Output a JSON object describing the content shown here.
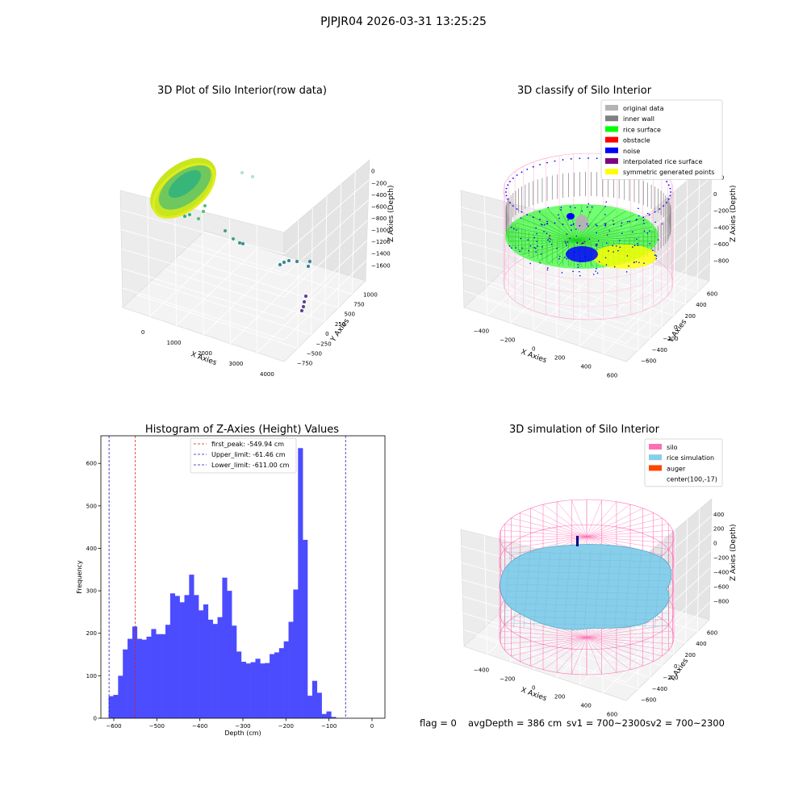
{
  "figure_title": "PJPJR04 2026-03-31 13:25:25",
  "status": {
    "flag": "flag = 0",
    "avg_depth": "avgDepth = 386 cm",
    "sv1": "sv1 = 700~2300",
    "sv2": "sv2 = 700~2300"
  },
  "colors": {
    "histogram": "#4c4cff",
    "first_peak_line": "#e31a1c",
    "limit_lines": "#1f1fb4",
    "silo": "#ff6eb4",
    "rice": "#87ceeb",
    "auger": "#ff4500",
    "original": "#b4b4b4",
    "inner_wall": "#808080",
    "rice_surface": "#00ff00",
    "obstacle": "#ff0000",
    "noise": "#0000ff",
    "interp": "#800080",
    "symmetric": "#ffff00"
  },
  "plot1": {
    "title": "3D Plot of Silo Interior(row data)",
    "xlabel": "X Axies",
    "ylabel": "Y Axies",
    "zlabel": "Z Axies (Depth)",
    "x_ticks": [
      "0",
      "1000",
      "2000",
      "3000",
      "4000"
    ],
    "y_ticks": [
      "1000",
      "750",
      "500",
      "250",
      "0",
      "−250",
      "−500",
      "−750"
    ],
    "z_ticks": [
      "0",
      "−200",
      "−400",
      "−600",
      "−800",
      "−1000",
      "−1200",
      "−1400",
      "−1600"
    ]
  },
  "plot2": {
    "title": "3D classify of Silo Interior",
    "xlabel": "X Axies",
    "ylabel": "Y Axies",
    "zlabel": "Z Axies (Depth)",
    "x_ticks": [
      "−400",
      "−200",
      "0",
      "200",
      "400",
      "600"
    ],
    "y_ticks": [
      "600",
      "400",
      "200",
      "0",
      "−200",
      "−400",
      "−600"
    ],
    "z_ticks": [
      "200",
      "0",
      "−200",
      "−400",
      "−600",
      "−800"
    ],
    "legend": [
      {
        "label": "original data",
        "color": "#b4b4b4"
      },
      {
        "label": "inner wall",
        "color": "#808080"
      },
      {
        "label": "rice surface",
        "color": "#00ff00"
      },
      {
        "label": "obstacle",
        "color": "#ff0000"
      },
      {
        "label": "noise",
        "color": "#0000ff"
      },
      {
        "label": "interpolated rice surface",
        "color": "#800080"
      },
      {
        "label": "symmetric generated points",
        "color": "#ffff00"
      }
    ]
  },
  "plot4": {
    "title": "3D simulation of Silo Interior",
    "xlabel": "X Axies",
    "ylabel": "Y Axies",
    "zlabel": "Z Axies (Depth)",
    "x_ticks": [
      "−400",
      "−200",
      "0",
      "200",
      "400",
      "600"
    ],
    "y_ticks": [
      "600",
      "400",
      "200",
      "0",
      "−200",
      "−400",
      "−600"
    ],
    "z_ticks": [
      "400",
      "200",
      "0",
      "−200",
      "−400",
      "−600",
      "−800"
    ],
    "legend": [
      {
        "label": "silo",
        "color": "#ff6eb4"
      },
      {
        "label": "rice simulation",
        "color": "#87ceeb"
      },
      {
        "label": "auger",
        "color": "#ff4500"
      },
      {
        "label": "center(100,-17)",
        "color": ""
      }
    ]
  },
  "chart_data": {
    "type": "bar",
    "title": "Histogram of Z-Axies (Height) Values",
    "xlabel": "Depth (cm)",
    "ylabel": "Frequency",
    "xlim": [
      -630,
      30
    ],
    "ylim": [
      0,
      665
    ],
    "x_ticks": [
      -600,
      -500,
      -400,
      -300,
      -200,
      -100,
      0
    ],
    "y_ticks": [
      0,
      100,
      200,
      300,
      400,
      500,
      600
    ],
    "bin_width": 11,
    "bin_start": -612,
    "values": [
      52,
      55,
      100,
      162,
      187,
      216,
      187,
      185,
      192,
      210,
      198,
      198,
      220,
      294,
      288,
      273,
      290,
      338,
      290,
      254,
      268,
      232,
      222,
      238,
      331,
      300,
      218,
      157,
      133,
      129,
      132,
      140,
      129,
      130,
      151,
      155,
      165,
      181,
      227,
      303,
      636,
      420,
      53,
      88,
      60,
      10,
      16,
      3
    ],
    "lines": [
      {
        "label": "first_peak: -549.94 cm",
        "x": -549.94,
        "color": "#e31a1c"
      },
      {
        "label": "Upper_limit: -61.46 cm",
        "x": -61.46,
        "color": "#1f1fb4"
      },
      {
        "label": "Lower_limit: -611.00 cm",
        "x": -611.0,
        "color": "#1f1fb4"
      }
    ],
    "legend_position": "top-center",
    "grid": false
  }
}
